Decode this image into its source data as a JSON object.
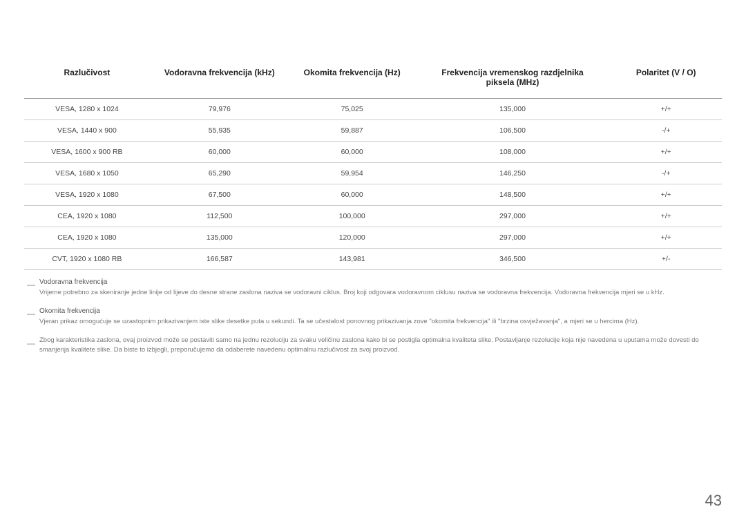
{
  "table": {
    "columns": [
      "Razlučivost",
      "Vodoravna frekvencija (kHz)",
      "Okomita frekvencija (Hz)",
      "Frekvencija vremenskog razdjelnika piksela (MHz)",
      "Polaritet (V / O)"
    ],
    "col_widths": [
      "18%",
      "20%",
      "18%",
      "28%",
      "16%"
    ],
    "rows": [
      {
        "resolution": "VESA, 1280 x 1024",
        "hfreq": "79,976",
        "vfreq": "75,025",
        "pixclock": "135,000",
        "polarity": "+/+"
      },
      {
        "resolution": "VESA, 1440 x 900",
        "hfreq": "55,935",
        "vfreq": "59,887",
        "pixclock": "106,500",
        "polarity": "-/+"
      },
      {
        "resolution": "VESA, 1600 x 900 RB",
        "hfreq": "60,000",
        "vfreq": "60,000",
        "pixclock": "108,000",
        "polarity": "+/+"
      },
      {
        "resolution": "VESA, 1680 x 1050",
        "hfreq": "65,290",
        "vfreq": "59,954",
        "pixclock": "146,250",
        "polarity": "-/+"
      },
      {
        "resolution": "VESA, 1920 x 1080",
        "hfreq": "67,500",
        "vfreq": "60,000",
        "pixclock": "148,500",
        "polarity": "+/+"
      },
      {
        "resolution": "CEA, 1920 x 1080",
        "hfreq": "112,500",
        "vfreq": "100,000",
        "pixclock": "297,000",
        "polarity": "+/+"
      },
      {
        "resolution": "CEA, 1920 x 1080",
        "hfreq": "135,000",
        "vfreq": "120,000",
        "pixclock": "297,000",
        "polarity": "+/+"
      },
      {
        "resolution": "CVT, 1920 x 1080 RB",
        "hfreq": "166,587",
        "vfreq": "143,981",
        "pixclock": "346,500",
        "polarity": "+/-"
      }
    ]
  },
  "notes": [
    {
      "title": "Vodoravna frekvencija",
      "body": "Vrijeme potrebno za skeniranje jedne linije od lijeve do desne strane zaslona naziva se vodoravni ciklus. Broj koji odgovara vodoravnom ciklusu naziva se vodoravna frekvencija. Vodoravna frekvencija mjeri se u kHz."
    },
    {
      "title": "Okomita frekvencija",
      "body": "Vjeran prikaz omogućuje se uzastopnim prikazivanjem iste slike desetke puta u sekundi. Ta se učestalost ponovnog prikazivanja zove \"okomita frekvencija\" ili \"brzina osvježavanja\", a mjeri se u hercima (Hz)."
    },
    {
      "title": "",
      "body": "Zbog karakteristika zaslona, ovaj proizvod može se postaviti samo na jednu rezoluciju za svaku veličinu zaslona kako bi se postigla optimalna kvaliteta slike. Postavljanje rezolucije koja nije navedena u uputama može dovesti do smanjenja kvalitete slike. Da biste to izbjegli, preporučujemo da odaberete navedenu optimalnu razlučivost za svoj proizvod."
    }
  ],
  "page_number": "43",
  "colors": {
    "text": "#333333",
    "header_border": "#999999",
    "row_border": "#cccccc",
    "note_text": "#777777",
    "background": "#ffffff"
  }
}
